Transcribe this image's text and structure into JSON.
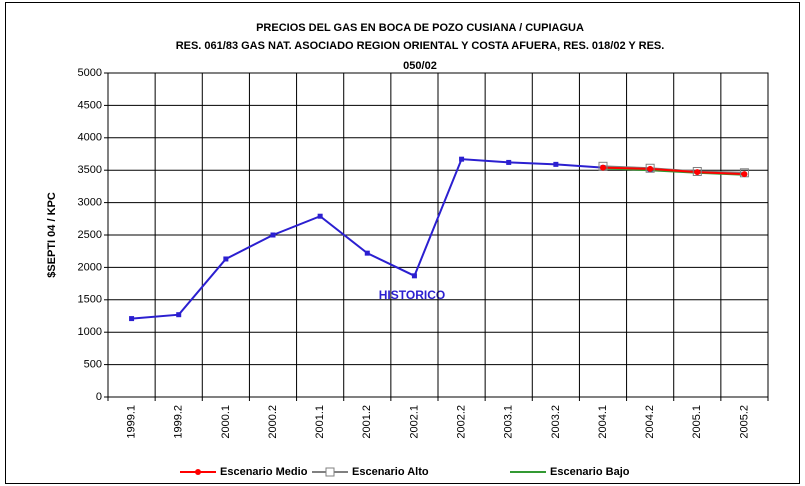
{
  "chart_data": {
    "type": "line",
    "title": "PRECIOS DEL GAS EN BOCA DE POZO CUSIANA / CUPIAGUA",
    "subtitle": [
      "RES. 061/83 GAS NAT. ASOCIADO REGION ORIENTAL Y COSTA AFUERA, RES. 018/02 Y RES.",
      "050/02"
    ],
    "y_label": "$SEPTI 04 / KPC",
    "annotation": "HISTORICO",
    "categories": [
      "1999.1",
      "1999.2",
      "2000.1",
      "2000.2",
      "2001.1",
      "2001.2",
      "2002.1",
      "2002.2",
      "2003.1",
      "2003.2",
      "2004.1",
      "2004.2",
      "2005.1",
      "2005.2"
    ],
    "series": [
      {
        "color": "#2b1fd0",
        "marker": "square",
        "values": [
          1210,
          1270,
          2130,
          2500,
          2790,
          2220,
          1870,
          3670,
          3620,
          3590,
          3540,
          3510,
          null,
          null
        ]
      },
      {
        "name": "Escenario Medio",
        "color": "#ff0000",
        "marker": "circle",
        "values": [
          null,
          null,
          null,
          null,
          null,
          null,
          null,
          null,
          null,
          null,
          3540,
          3520,
          3470,
          3440
        ]
      },
      {
        "name": "Escenario Alto",
        "color": "#808080",
        "marker": "open-square",
        "values": [
          null,
          null,
          null,
          null,
          null,
          null,
          null,
          null,
          null,
          null,
          3560,
          3530,
          3480,
          3460
        ]
      },
      {
        "name": "Escenario Bajo",
        "color": "#339933",
        "marker": "none",
        "values": [
          null,
          null,
          null,
          null,
          null,
          null,
          null,
          null,
          null,
          null,
          3530,
          3500,
          3460,
          3430
        ]
      }
    ],
    "ylim": [
      0,
      5000
    ],
    "yticks": [
      0,
      500,
      1000,
      1500,
      2000,
      2500,
      3000,
      3500,
      4000,
      4500,
      5000
    ],
    "grid": true
  }
}
